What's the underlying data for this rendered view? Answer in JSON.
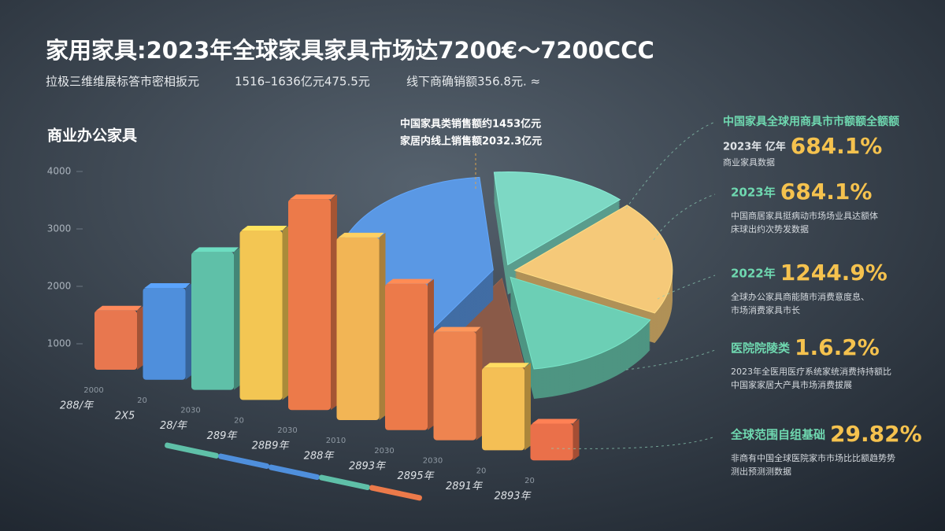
{
  "header": {
    "title": "家用家具:2023年全球家具家具市场达7200€～7200CCC",
    "subtitle": [
      "拉极三维维展标答市密相扳元",
      "1516–1636亿元475.5元",
      "线下商确销额356.8元. ≈"
    ]
  },
  "chart_data": [
    {
      "type": "bar",
      "title": "商业办公家具",
      "categories": [
        "288/年",
        "2X5",
        "28/年",
        "289年",
        "28B9年",
        "288年",
        "2893年",
        "2895年",
        "2891年",
        "2893年"
      ],
      "category_codes": [
        "2000",
        "20",
        "2030",
        "20",
        "2030",
        "2010",
        "2030",
        "2030",
        "20",
        "20"
      ],
      "values": [
        1030,
        1600,
        2400,
        2950,
        3670,
        3180,
        2550,
        1890,
        1440,
        640
      ],
      "colors": [
        "#e8774f",
        "#4f8fdc",
        "#5fc0a8",
        "#f3c653",
        "#ec7a4a",
        "#f2b555",
        "#ec7a4a",
        "#ee8450",
        "#f4bf55",
        "#ea704a"
      ],
      "ylim": [
        0,
        4000
      ],
      "yticks": [
        1000,
        2000,
        3000,
        4000
      ]
    },
    {
      "type": "pie",
      "values": [
        14,
        20,
        15,
        11,
        40
      ],
      "colors": [
        "#7dd8c4",
        "#f5c979",
        "#6ccfb5",
        "#8a5a48",
        "#5a98e4"
      ],
      "annotations": [
        "中国家具类销售额约1453亿元",
        "家居内线上销售额2032.3亿元"
      ]
    }
  ],
  "callouts": [
    {
      "heading": "中国家具全球用商具市市额额全额额",
      "label": "2023年 亿年",
      "value": "684.1%",
      "desc": [
        "商业家具数据"
      ]
    },
    {
      "heading": "",
      "label": "2023年",
      "value": "684.1%",
      "desc": [
        "中国商居家具挺病动市场场业具达额体",
        "床球出约次势发数据"
      ]
    },
    {
      "heading": "",
      "label": "2022年",
      "value": "1244.9%",
      "desc": [
        "全球办公家具商能随市消费意度息、",
        "市场消费家具市长"
      ]
    },
    {
      "heading": "",
      "label": "医院院陵类",
      "value": "1.6.2%",
      "desc": [
        "2023年全医用医疗系统家统消费持持额比",
        "中国家家居大产具市场消费拔展"
      ]
    },
    {
      "heading": "",
      "label": "全球范围自组基础",
      "value": "29.82%",
      "desc": [
        "非商有中国全球医院家市市场比比额趋势势",
        "测出预测测数据"
      ]
    }
  ]
}
